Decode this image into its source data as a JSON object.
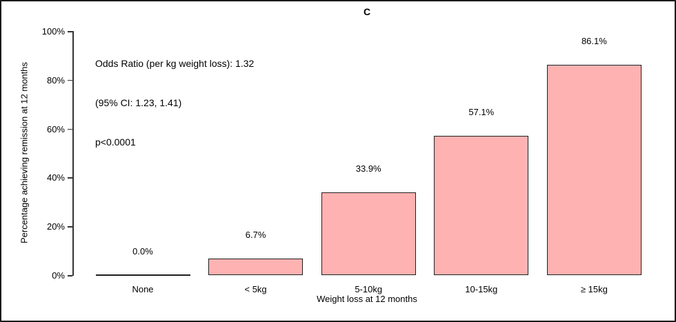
{
  "chart_data": {
    "type": "bar",
    "title": "C",
    "categories": [
      "None",
      "< 5kg",
      "5-10kg",
      "10-15kg",
      "≥ 15kg"
    ],
    "values": [
      0.0,
      6.7,
      33.9,
      57.1,
      86.1
    ],
    "value_labels": [
      "0.0%",
      "6.7%",
      "33.9%",
      "57.1%",
      "86.1%"
    ],
    "xlabel": "Weight loss at 12 months",
    "ylabel": "Percentage achieving remission at 12 months",
    "ylim": [
      0,
      100
    ],
    "yticks": [
      0,
      20,
      40,
      60,
      80,
      100
    ],
    "ytick_labels": [
      "0%",
      "20%",
      "40%",
      "60%",
      "80%",
      "100%"
    ],
    "annotation_lines": [
      "Odds Ratio (per kg weight loss): 1.32",
      "(95% CI: 1.23, 1.41)",
      "p<0.0001"
    ],
    "grid": false,
    "legend": null,
    "colors": {
      "bar_fill": "#ffb2b2",
      "bar_border": "#1f1f1f",
      "axis": "#333333",
      "text": "#000000",
      "frame_border": "#1a1a1a",
      "background": "#ffffff"
    }
  }
}
